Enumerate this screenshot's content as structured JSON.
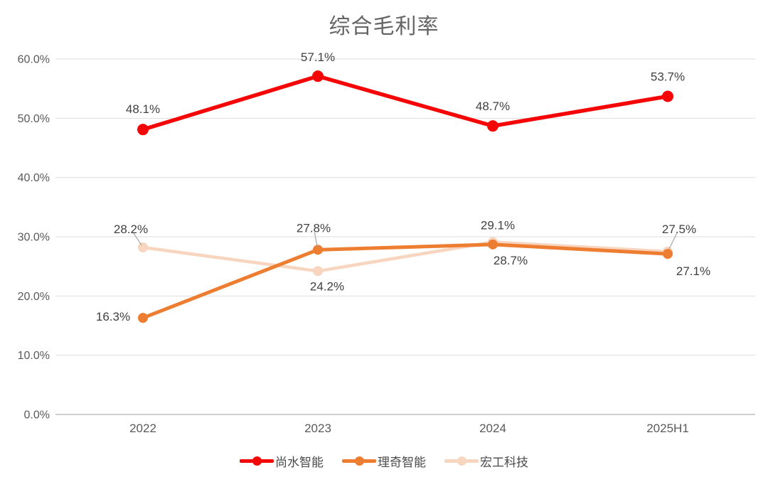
{
  "chart_data": {
    "type": "line",
    "title": "综合毛利率",
    "categories": [
      "2022",
      "2023",
      "2024",
      "2025H1"
    ],
    "series": [
      {
        "name": "尚水智能",
        "color": "#f50606",
        "values": [
          48.1,
          57.1,
          48.7,
          53.7
        ],
        "labels": [
          "48.1%",
          "57.1%",
          "48.7%",
          "53.7%"
        ],
        "label_offsets": [
          [
            0,
            -29
          ],
          [
            0,
            -27
          ],
          [
            0,
            -28
          ],
          [
            0,
            -28
          ]
        ],
        "leader_at": []
      },
      {
        "name": "理奇智能",
        "color": "#ED7D31",
        "values": [
          16.3,
          27.8,
          28.7,
          27.1
        ],
        "labels": [
          "16.3%",
          "27.8%",
          "28.7%",
          "27.1%"
        ],
        "label_offsets": [
          [
            -42,
            -2
          ],
          [
            -6,
            -31
          ],
          [
            25,
            22
          ],
          [
            36,
            24
          ]
        ],
        "leader_at": [
          1
        ]
      },
      {
        "name": "宏工科技",
        "color": "#f7d5bf",
        "values": [
          28.2,
          24.2,
          29.1,
          27.5
        ],
        "labels": [
          "28.2%",
          "24.2%",
          "29.1%",
          "27.5%"
        ],
        "label_offsets": [
          [
            -17,
            -26
          ],
          [
            13,
            21
          ],
          [
            7,
            -24
          ],
          [
            16,
            -32
          ]
        ],
        "leader_at": [
          0,
          3
        ]
      }
    ],
    "y_axis": {
      "min": 0,
      "max": 60,
      "step": 10,
      "tick_labels": [
        "0.0%",
        "10.0%",
        "20.0%",
        "30.0%",
        "40.0%",
        "50.0%",
        "60.0%"
      ]
    },
    "ylim": [
      0,
      60
    ],
    "grid": true,
    "legend_position": "bottom",
    "colors": {
      "grid_line": "#dedede",
      "axis_line": "#cfcfcf",
      "tick_text": "#595959",
      "data_label_text": "#404040",
      "leader_line": "#a6a6a6",
      "title_text": "#646464"
    }
  }
}
